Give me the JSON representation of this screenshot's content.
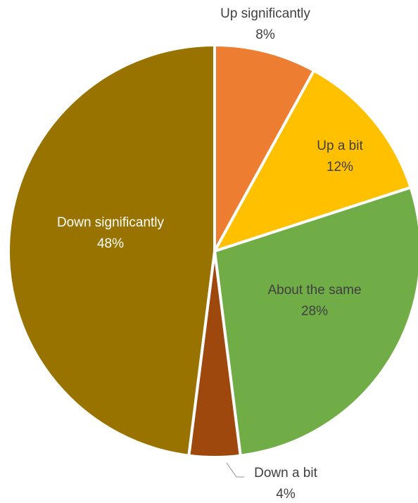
{
  "chart_data": {
    "type": "pie",
    "title": "",
    "start_angle_deg": 0,
    "direction": "clockwise",
    "slices": [
      {
        "name": "Up significantly",
        "value": 8,
        "label": "8%",
        "color": "#ED7D31",
        "label_color": "#404040"
      },
      {
        "name": "Up a bit",
        "value": 12,
        "label": "12%",
        "color": "#FFC000",
        "label_color": "#404040"
      },
      {
        "name": "About the same",
        "value": 28,
        "label": "28%",
        "color": "#70AD47",
        "label_color": "#404040"
      },
      {
        "name": "Down a bit",
        "value": 4,
        "label": "4%",
        "color": "#9E480E",
        "label_color": "#404040"
      },
      {
        "name": "Down significantly",
        "value": 48,
        "label": "48%",
        "color": "#997300",
        "label_color": "#FFFFFF"
      }
    ]
  }
}
